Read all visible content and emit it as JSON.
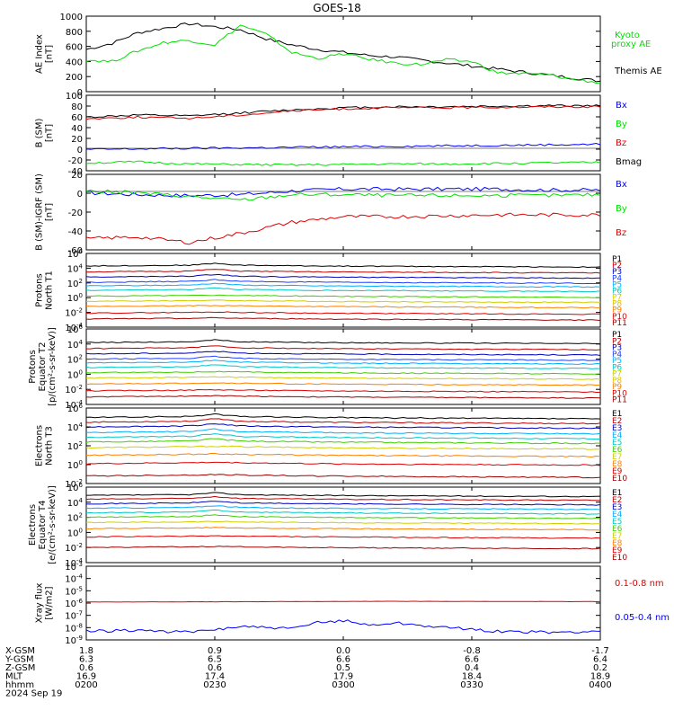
{
  "title": "GOES-18",
  "colors": {
    "black": "#000000",
    "green": "#00e000",
    "blue": "#0000ff",
    "red": "#e00000"
  },
  "chart_data": [
    {
      "type": "line",
      "ylabel": [
        "AE Index",
        "[nT]"
      ],
      "ylim": [
        0,
        1000
      ],
      "yticks": [
        "1000",
        "800",
        "600",
        "400",
        "200",
        "0"
      ],
      "legend": [
        {
          "text": "Kyoto",
          "color": "#00e000"
        },
        {
          "text": "proxy AE",
          "color": "#00e000"
        },
        {
          "text": "Themis AE",
          "color": "#000000"
        }
      ],
      "series": [
        {
          "name": "Themis AE",
          "color": "#000000",
          "x": [
            0,
            0.05,
            0.1,
            0.15,
            0.2,
            0.25,
            0.3,
            0.35,
            0.4,
            0.45,
            0.5,
            0.55,
            0.6,
            0.65,
            0.7,
            0.75,
            0.8,
            0.85,
            0.9,
            0.95,
            1
          ],
          "values": [
            560,
            640,
            780,
            840,
            900,
            860,
            820,
            700,
            620,
            560,
            520,
            480,
            460,
            420,
            380,
            340,
            300,
            260,
            220,
            180,
            140
          ]
        },
        {
          "name": "Kyoto proxy AE",
          "color": "#00e000",
          "x": [
            0,
            0.05,
            0.1,
            0.15,
            0.2,
            0.25,
            0.3,
            0.35,
            0.4,
            0.45,
            0.5,
            0.55,
            0.6,
            0.65,
            0.7,
            0.75,
            0.8,
            0.85,
            0.9,
            0.95,
            1
          ],
          "values": [
            420,
            400,
            540,
            650,
            680,
            620,
            880,
            760,
            520,
            440,
            500,
            430,
            380,
            360,
            420,
            400,
            250,
            240,
            220,
            160,
            120
          ]
        }
      ]
    },
    {
      "type": "line",
      "ylabel": [
        "B (SM)",
        "[nT]"
      ],
      "ylim": [
        -45,
        100
      ],
      "yticks": [
        "100",
        "80",
        "60",
        "40",
        "20",
        "0",
        "-20",
        "-40"
      ],
      "legend": [
        {
          "text": "Bx",
          "color": "#0000ff"
        },
        {
          "text": "By",
          "color": "#00e000"
        },
        {
          "text": "Bz",
          "color": "#e00000"
        },
        {
          "text": "Bmag",
          "color": "#000000"
        }
      ],
      "series": [
        {
          "name": "Bmag",
          "color": "#000000",
          "x": [
            0,
            0.1,
            0.2,
            0.3,
            0.4,
            0.5,
            0.6,
            0.7,
            0.8,
            0.9,
            1
          ],
          "values": [
            58,
            62,
            60,
            66,
            72,
            76,
            78,
            78,
            79,
            80,
            80
          ]
        },
        {
          "name": "Bz",
          "color": "#e00000",
          "x": [
            0,
            0.1,
            0.2,
            0.3,
            0.4,
            0.5,
            0.6,
            0.7,
            0.8,
            0.9,
            1
          ],
          "values": [
            55,
            58,
            56,
            62,
            70,
            74,
            76,
            76,
            77,
            78,
            78
          ]
        },
        {
          "name": "Bx",
          "color": "#0000ff",
          "x": [
            0,
            0.1,
            0.2,
            0.3,
            0.4,
            0.5,
            0.6,
            0.7,
            0.8,
            0.9,
            1
          ],
          "values": [
            -4,
            -3,
            -2,
            -1,
            0,
            1,
            2,
            3,
            4,
            5,
            6
          ]
        },
        {
          "name": "By",
          "color": "#00e000",
          "x": [
            0,
            0.1,
            0.2,
            0.3,
            0.4,
            0.5,
            0.6,
            0.7,
            0.8,
            0.9,
            1
          ],
          "values": [
            -30,
            -28,
            -32,
            -33,
            -34,
            -33,
            -32,
            -32,
            -31,
            -30,
            -29
          ]
        }
      ]
    },
    {
      "type": "line",
      "ylabel": [
        "B (SM)-IGRF (SM)",
        "[nT]"
      ],
      "ylim": [
        -62,
        20
      ],
      "yticks": [
        "20",
        "0",
        "-20",
        "-40",
        "-60"
      ],
      "legend": [
        {
          "text": "Bx",
          "color": "#0000ff"
        },
        {
          "text": "By",
          "color": "#00e000"
        },
        {
          "text": "Bz",
          "color": "#e00000"
        }
      ],
      "series": [
        {
          "name": "Bx",
          "color": "#0000ff",
          "x": [
            0,
            0.1,
            0.2,
            0.3,
            0.4,
            0.5,
            0.6,
            0.7,
            0.8,
            0.9,
            1
          ],
          "values": [
            0,
            -2,
            -3,
            -2,
            2,
            4,
            4,
            4,
            4,
            3,
            3
          ]
        },
        {
          "name": "By",
          "color": "#00e000",
          "x": [
            0,
            0.1,
            0.2,
            0.3,
            0.4,
            0.5,
            0.6,
            0.7,
            0.8,
            0.9,
            1
          ],
          "values": [
            2,
            0,
            -4,
            -8,
            -2,
            -2,
            -3,
            -3,
            -3,
            -3,
            -2
          ]
        },
        {
          "name": "Bz",
          "color": "#e00000",
          "x": [
            0,
            0.1,
            0.2,
            0.3,
            0.4,
            0.5,
            0.6,
            0.7,
            0.8,
            0.9,
            1
          ],
          "values": [
            -50,
            -48,
            -54,
            -44,
            -32,
            -26,
            -26,
            -25,
            -24,
            -24,
            -24
          ]
        }
      ]
    },
    {
      "type": "line",
      "log": true,
      "ylabel": [
        "Protons",
        "North T1"
      ],
      "ylim_exp": [
        -4,
        6
      ],
      "yticks": [
        "10^6",
        "10^4",
        "10^2",
        "10^0",
        "10^-2",
        "10^-4"
      ],
      "legend": [
        "P1",
        "P2",
        "P3",
        "P4",
        "P5",
        "P6",
        "P7",
        "P8",
        "P9",
        "P10",
        "P11"
      ],
      "levels": [
        4.3,
        3.5,
        2.8,
        2.1,
        1.6,
        1.0,
        0.2,
        -0.5,
        -1.2,
        -2.1,
        -2.9
      ]
    },
    {
      "type": "line",
      "log": true,
      "ylabel": [
        "Protons",
        "Equator T2",
        "[p/(cm²-s-sr-keV)]"
      ],
      "ylim_exp": [
        -4,
        6
      ],
      "yticks": [
        "10^6",
        "10^4",
        "10^2",
        "10^0",
        "10^-2",
        "10^-4"
      ],
      "legend": [
        "P1",
        "P2",
        "P3",
        "P4",
        "P5",
        "P6",
        "P7",
        "P8",
        "P9",
        "P10",
        "P11"
      ],
      "levels": [
        4.2,
        3.4,
        2.7,
        2.0,
        1.5,
        0.9,
        0.2,
        -0.5,
        -1.3,
        -2.2,
        -3.0
      ]
    },
    {
      "type": "line",
      "log": true,
      "ylabel": [
        "Electrons",
        "North T3"
      ],
      "ylim_exp": [
        -2,
        6
      ],
      "yticks": [
        "10^6",
        "10^4",
        "10^2",
        "10^0",
        "10^-2"
      ],
      "legend": [
        "E1",
        "E2",
        "E3",
        "E4",
        "E5",
        "E6",
        "E7",
        "E8",
        "E9",
        "E10"
      ],
      "levels": [
        5.0,
        4.5,
        4.0,
        3.4,
        2.9,
        2.4,
        1.8,
        1.0,
        0.1,
        -1.2
      ]
    },
    {
      "type": "line",
      "log": true,
      "ylabel": [
        "Electrons",
        "Equator T4",
        "[e/(cm²-s-sr-keV)]"
      ],
      "ylim_exp": [
        -4,
        6
      ],
      "yticks": [
        "10^6",
        "10^4",
        "10^2",
        "10^0",
        "10^-2",
        "10^-4"
      ],
      "legend": [
        "E1",
        "E2",
        "E3",
        "E4",
        "E5",
        "E6",
        "E7",
        "E8",
        "E9",
        "E10"
      ],
      "levels": [
        4.9,
        4.4,
        3.8,
        3.2,
        2.6,
        2.0,
        1.3,
        0.5,
        -0.6,
        -2.0
      ]
    },
    {
      "type": "line",
      "log": true,
      "ylabel": [
        "Xray flux",
        "[W/m2]"
      ],
      "ylim_exp": [
        -9,
        -3
      ],
      "yticks": [
        "10^-3",
        "10^-4",
        "10^-5",
        "10^-6",
        "10^-7",
        "10^-8",
        "10^-9"
      ],
      "legend": [
        {
          "text": "0.1-0.8 nm",
          "color": "#e00000"
        },
        {
          "text": "0.05-0.4 nm",
          "color": "#0000ff"
        }
      ],
      "series": [
        {
          "name": "0.1-0.8 nm",
          "color": "#e00000",
          "x": [
            0,
            0.2,
            0.4,
            0.6,
            0.8,
            1
          ],
          "values": [
            -5.92,
            -5.9,
            -5.88,
            -5.86,
            -5.87,
            -5.88
          ]
        },
        {
          "name": "0.05-0.4 nm",
          "color": "#0000ff",
          "x": [
            0,
            0.1,
            0.2,
            0.3,
            0.4,
            0.45,
            0.5,
            0.55,
            0.6,
            0.7,
            0.8,
            0.9,
            1
          ],
          "values": [
            -8.3,
            -8.2,
            -8.4,
            -7.9,
            -8.1,
            -7.6,
            -7.4,
            -7.8,
            -7.6,
            -8.0,
            -8.3,
            -8.4,
            -8.3
          ]
        }
      ]
    }
  ],
  "xaxis": {
    "row_labels": [
      "X-GSM",
      "Y-GSM",
      "Z-GSM",
      "MLT",
      "hhmm",
      "2024 Sep 19"
    ],
    "columns": [
      [
        "1.8",
        "6.3",
        "0.6",
        "16.9",
        "0200"
      ],
      [
        "0.9",
        "6.5",
        "0.6",
        "17.4",
        "0230"
      ],
      [
        "0.0",
        "6.6",
        "0.5",
        "17.9",
        "0300"
      ],
      [
        "-0.8",
        "6.6",
        "0.4",
        "18.4",
        "0330"
      ],
      [
        "-1.7",
        "6.4",
        "0.2",
        "18.9",
        "0400"
      ]
    ]
  }
}
